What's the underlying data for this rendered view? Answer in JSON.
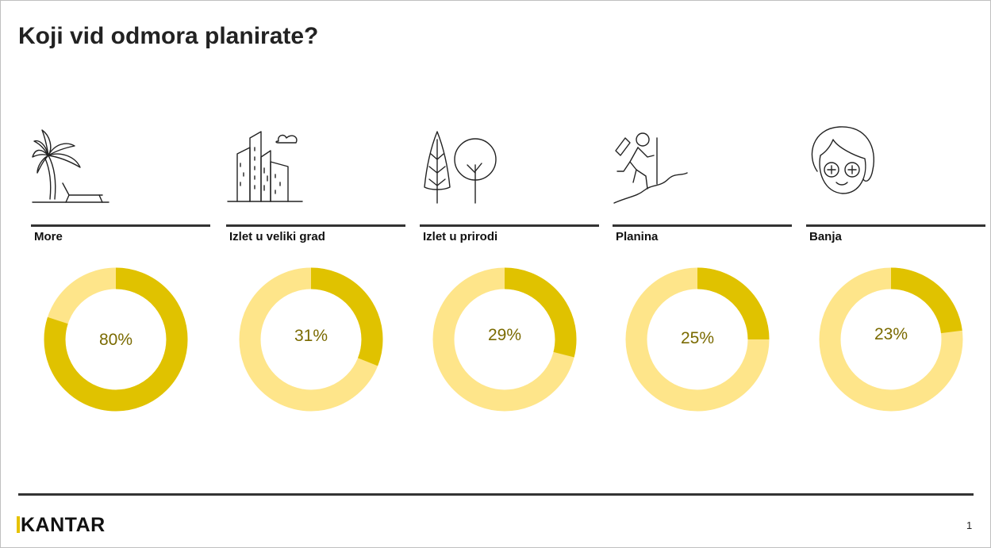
{
  "title": "Koji vid odmora planirate?",
  "chart_data": {
    "type": "pie",
    "variant": "donut",
    "categories": [
      "More",
      "Izlet u veliki grad",
      "Izlet u prirodi",
      "Planina",
      "Banja"
    ],
    "values": [
      80,
      31,
      29,
      25,
      23
    ],
    "value_labels": [
      "80%",
      "31%",
      "29%",
      "25%",
      "23%"
    ],
    "colors": {
      "value": "#e0c200",
      "remainder": "#fee58a",
      "label_text": "#7a6a00"
    }
  },
  "categories": [
    {
      "label": "More",
      "value": 80,
      "display": "80%",
      "icon": "palm-tree-beach-icon"
    },
    {
      "label": "Izlet u veliki grad",
      "value": 31,
      "display": "31%",
      "icon": "city-buildings-icon"
    },
    {
      "label": "Izlet u prirodi",
      "value": 29,
      "display": "29%",
      "icon": "trees-icon"
    },
    {
      "label": "Planina",
      "value": 25,
      "display": "25%",
      "icon": "hiker-icon"
    },
    {
      "label": "Banja",
      "value": 23,
      "display": "23%",
      "icon": "spa-face-mask-icon"
    }
  ],
  "brand": {
    "name": "KANTAR",
    "accent": "#e6c200"
  },
  "page_number": "1"
}
